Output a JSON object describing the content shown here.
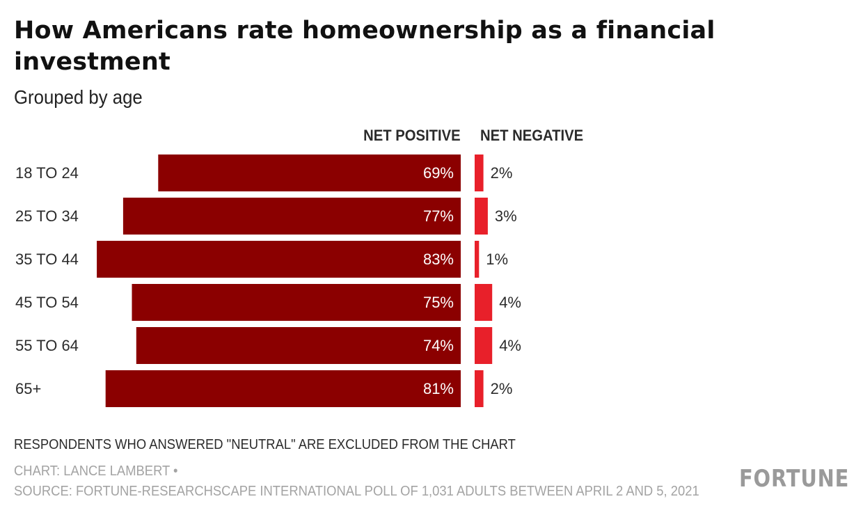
{
  "header": {
    "title": "How Americans rate homeownership as a financial investment",
    "subtitle": "Grouped by age"
  },
  "chart_data": {
    "type": "bar",
    "title": "How Americans rate homeownership as a financial investment",
    "subtitle": "Grouped by age",
    "categories": [
      "18 TO 24",
      "25 TO 34",
      "35 TO 44",
      "45 TO 54",
      "55 TO 64",
      "65+"
    ],
    "series": [
      {
        "name": "NET POSITIVE",
        "values": [
          69,
          77,
          83,
          75,
          74,
          81
        ],
        "labels": [
          "69%",
          "77%",
          "83%",
          "75%",
          "74%",
          "81%"
        ],
        "color": "#8b0000"
      },
      {
        "name": "NET NEGATIVE",
        "values": [
          2,
          3,
          1,
          4,
          4,
          2
        ],
        "labels": [
          "2%",
          "3%",
          "1%",
          "4%",
          "4%",
          "2%"
        ],
        "color": "#e8202a"
      }
    ],
    "xlabel": "",
    "ylabel": "",
    "grid": false,
    "legend": "column headers above bars"
  },
  "footer": {
    "note": "RESPONDENTS WHO ANSWERED \"NEUTRAL\" ARE EXCLUDED FROM THE CHART",
    "credit": "CHART: LANCE LAMBERT •",
    "source": "SOURCE: FORTUNE-RESEARCHSCAPE INTERNATIONAL POLL OF 1,031 ADULTS BETWEEN APRIL 2 AND 5, 2021",
    "logo": "FORTUNE"
  }
}
